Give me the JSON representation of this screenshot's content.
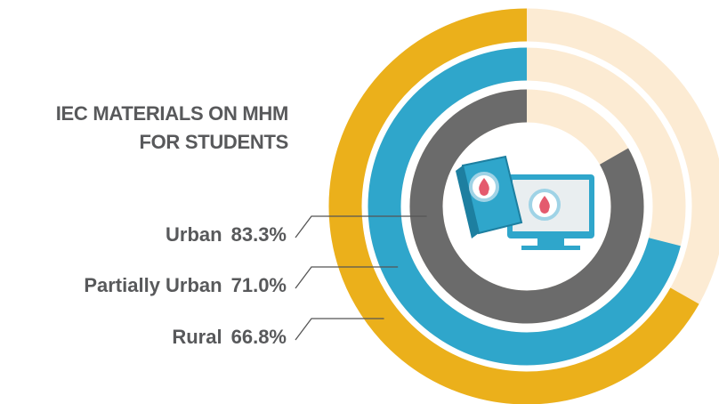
{
  "chart_data": {
    "type": "radial-bar",
    "title": "IEC MATERIALS ON MHM FOR STUDENTS",
    "categories": [
      "Urban",
      "Partially Urban",
      "Rural"
    ],
    "values": [
      83.3,
      71.0,
      66.8
    ],
    "value_labels": [
      "83.3%",
      "71.0%",
      "66.8%"
    ],
    "colors": [
      "#6b6b6b",
      "#2fa6cb",
      "#ebb01b"
    ],
    "track_color": "#fcebd3",
    "ylim": [
      0,
      100
    ]
  }
}
